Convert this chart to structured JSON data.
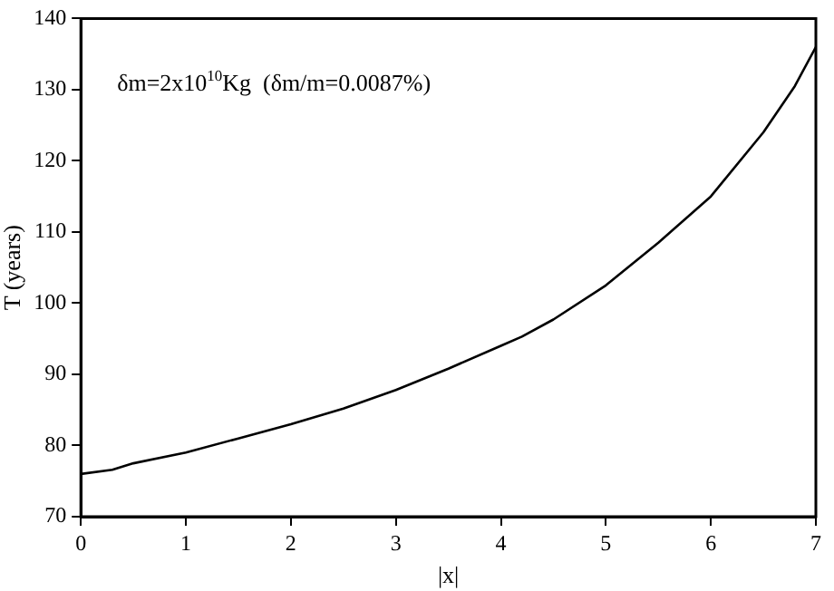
{
  "chart_data": {
    "type": "line",
    "xlabel": "|x|",
    "ylabel": "T (years)",
    "annotations": [
      "δm=2x10$^{10}$Kg  (δm/m=0.0087%)"
    ],
    "xlim": [
      0,
      7
    ],
    "xticks": [
      0,
      1,
      2,
      3,
      4,
      5,
      6,
      7
    ],
    "ylim": [
      70,
      140
    ],
    "yticks": [
      70,
      80,
      90,
      100,
      110,
      120,
      130,
      140
    ],
    "grid": false,
    "legend": false,
    "marker": "none",
    "line_style": "solid",
    "series": [
      {
        "color": "#000000",
        "x": [
          0,
          0.3,
          0.5,
          1,
          1.5,
          2,
          2.5,
          3,
          3.5,
          4,
          4.2,
          4.5,
          5,
          5.5,
          6,
          6.5,
          6.8,
          7
        ],
        "values": [
          76,
          76.6,
          77.5,
          79,
          81,
          83,
          85.2,
          87.8,
          90.8,
          94,
          95.3,
          97.7,
          102.5,
          108.5,
          115,
          124,
          130.5,
          136
        ]
      }
    ]
  }
}
